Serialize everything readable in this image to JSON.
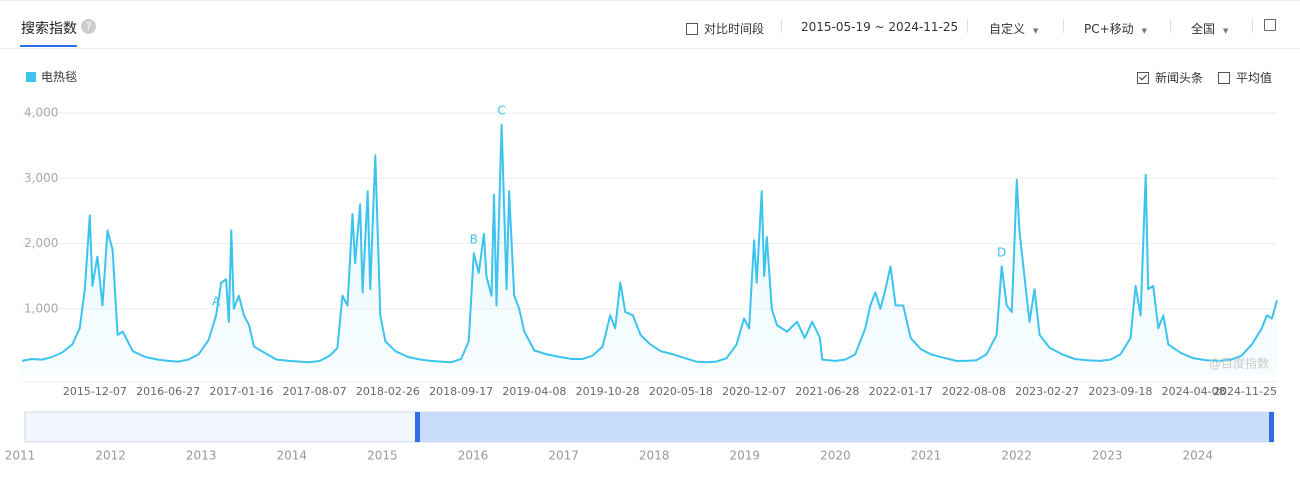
{
  "header": {
    "tab": "搜索指数",
    "compare": "对比时间段",
    "date_range": "2015-05-19 ~ 2024-11-25",
    "custom": "自定义",
    "device": "PC+移动",
    "region": "全国"
  },
  "options": {
    "news": "新闻头条",
    "news_checked": true,
    "average": "平均值",
    "average_checked": false
  },
  "chart_data": {
    "type": "line",
    "watermark": "@百度指数",
    "x": [
      "2015-05-19",
      "2015-06-15",
      "2015-07-13",
      "2015-08-10",
      "2015-09-07",
      "2015-10-05",
      "2015-10-26",
      "2015-11-09",
      "2015-11-23",
      "2015-11-30",
      "2015-12-14",
      "2015-12-28",
      "2016-01-11",
      "2016-01-25",
      "2016-02-08",
      "2016-02-22",
      "2016-03-21",
      "2016-04-25",
      "2016-05-30",
      "2016-06-27",
      "2016-07-25",
      "2016-08-22",
      "2016-09-19",
      "2016-10-17",
      "2016-11-07",
      "2016-11-21",
      "2016-12-05",
      "2016-12-12",
      "2016-12-19",
      "2016-12-26",
      "2017-01-09",
      "2017-01-23",
      "2017-02-06",
      "2017-02-20",
      "2017-03-20",
      "2017-04-24",
      "2017-05-29",
      "2017-06-26",
      "2017-07-24",
      "2017-08-21",
      "2017-09-18",
      "2017-10-09",
      "2017-10-23",
      "2017-11-06",
      "2017-11-20",
      "2017-11-27",
      "2017-12-11",
      "2017-12-18",
      "2018-01-01",
      "2018-01-08",
      "2018-01-22",
      "2018-02-05",
      "2018-02-19",
      "2018-03-19",
      "2018-04-23",
      "2018-05-28",
      "2018-06-25",
      "2018-07-23",
      "2018-08-20",
      "2018-09-17",
      "2018-10-08",
      "2018-10-22",
      "2018-11-05",
      "2018-11-19",
      "2018-11-26",
      "2018-12-10",
      "2018-12-17",
      "2018-12-24",
      "2019-01-07",
      "2019-01-21",
      "2019-01-28",
      "2019-02-11",
      "2019-02-25",
      "2019-03-11",
      "2019-04-08",
      "2019-05-13",
      "2019-06-17",
      "2019-07-22",
      "2019-08-19",
      "2019-09-16",
      "2019-10-14",
      "2019-11-04",
      "2019-11-18",
      "2019-12-02",
      "2019-12-16",
      "2020-01-06",
      "2020-01-27",
      "2020-02-24",
      "2020-03-23",
      "2020-04-27",
      "2020-05-25",
      "2020-06-29",
      "2020-07-27",
      "2020-08-24",
      "2020-09-21",
      "2020-10-19",
      "2020-11-09",
      "2020-11-23",
      "2020-12-07",
      "2020-12-14",
      "2020-12-28",
      "2021-01-04",
      "2021-01-11",
      "2021-01-25",
      "2021-02-08",
      "2021-03-08",
      "2021-04-05",
      "2021-04-26",
      "2021-05-17",
      "2021-06-07",
      "2021-06-14",
      "2021-07-19",
      "2021-08-16",
      "2021-09-13",
      "2021-10-11",
      "2021-10-25",
      "2021-11-08",
      "2021-11-22",
      "2021-12-06",
      "2021-12-20",
      "2022-01-03",
      "2022-01-24",
      "2022-02-14",
      "2022-03-14",
      "2022-04-11",
      "2022-05-16",
      "2022-06-20",
      "2022-07-18",
      "2022-08-15",
      "2022-09-12",
      "2022-10-10",
      "2022-10-24",
      "2022-11-07",
      "2022-11-21",
      "2022-12-05",
      "2022-12-12",
      "2022-12-26",
      "2023-01-09",
      "2023-01-23",
      "2023-02-06",
      "2023-03-06",
      "2023-04-10",
      "2023-05-15",
      "2023-06-19",
      "2023-07-24",
      "2023-08-21",
      "2023-09-18",
      "2023-10-16",
      "2023-10-30",
      "2023-11-13",
      "2023-11-27",
      "2023-12-04",
      "2023-12-18",
      "2024-01-01",
      "2024-01-15",
      "2024-01-29",
      "2024-03-04",
      "2024-04-08",
      "2024-05-13",
      "2024-06-17",
      "2024-07-22",
      "2024-08-19",
      "2024-09-16",
      "2024-10-14",
      "2024-10-28",
      "2024-11-11",
      "2024-11-25"
    ],
    "series": [
      {
        "name": "电热毯",
        "color": "#3cc3ee",
        "values": [
          200,
          230,
          220,
          260,
          330,
          450,
          700,
          1300,
          2430,
          1350,
          1800,
          1050,
          2200,
          1900,
          600,
          650,
          350,
          260,
          220,
          200,
          190,
          220,
          300,
          520,
          900,
          1400,
          1450,
          800,
          2200,
          1000,
          1200,
          900,
          750,
          420,
          330,
          220,
          200,
          190,
          180,
          200,
          280,
          400,
          1200,
          1050,
          2450,
          1700,
          2600,
          1250,
          2800,
          1300,
          3350,
          900,
          500,
          350,
          260,
          220,
          200,
          190,
          180,
          230,
          500,
          1850,
          1550,
          2150,
          1500,
          1200,
          2750,
          1050,
          3820,
          1300,
          2800,
          1200,
          1000,
          650,
          360,
          300,
          260,
          230,
          230,
          280,
          420,
          900,
          700,
          1400,
          950,
          900,
          600,
          450,
          350,
          300,
          250,
          190,
          180,
          190,
          240,
          450,
          850,
          700,
          2050,
          1400,
          2800,
          1500,
          2100,
          1000,
          750,
          650,
          800,
          550,
          800,
          560,
          220,
          200,
          220,
          300,
          700,
          1050,
          1250,
          1000,
          1300,
          1650,
          1050,
          1050,
          550,
          380,
          300,
          250,
          200,
          200,
          210,
          300,
          600,
          1650,
          1050,
          950,
          2980,
          2200,
          1500,
          800,
          1300,
          600,
          400,
          300,
          230,
          210,
          200,
          220,
          300,
          550,
          1350,
          900,
          3050,
          1300,
          1350,
          700,
          900,
          450,
          320,
          240,
          210,
          200,
          220,
          280,
          450,
          700,
          900,
          850,
          1130
        ]
      }
    ],
    "annotations": [
      {
        "label": "A",
        "x": "2016-11-07"
      },
      {
        "label": "B",
        "x": "2018-10-22"
      },
      {
        "label": "C",
        "x": "2019-01-07"
      },
      {
        "label": "D",
        "x": "2022-10-24"
      }
    ],
    "xlim": [
      "2015-05-19",
      "2024-11-25"
    ],
    "xticks": [
      "2015-12-07",
      "2016-06-27",
      "2017-01-16",
      "2017-08-07",
      "2018-02-26",
      "2018-09-17",
      "2019-04-08",
      "2019-10-28",
      "2020-05-18",
      "2020-12-07",
      "2021-06-28",
      "2022-01-17",
      "2022-08-08",
      "2023-02-27",
      "2023-09-18",
      "2024-04-08",
      "2024-11-25"
    ],
    "ylim": [
      0,
      4000
    ],
    "yticks": [
      {
        "value": 1000,
        "label": "1,000"
      },
      {
        "value": 2000,
        "label": "2,000"
      },
      {
        "value": 3000,
        "label": "3,000"
      },
      {
        "value": 4000,
        "label": "4,000"
      }
    ],
    "grid": true
  },
  "navigator": {
    "years": [
      2011,
      2012,
      2013,
      2014,
      2015,
      2016,
      2017,
      2018,
      2019,
      2020,
      2021,
      2022,
      2023,
      2024
    ]
  }
}
